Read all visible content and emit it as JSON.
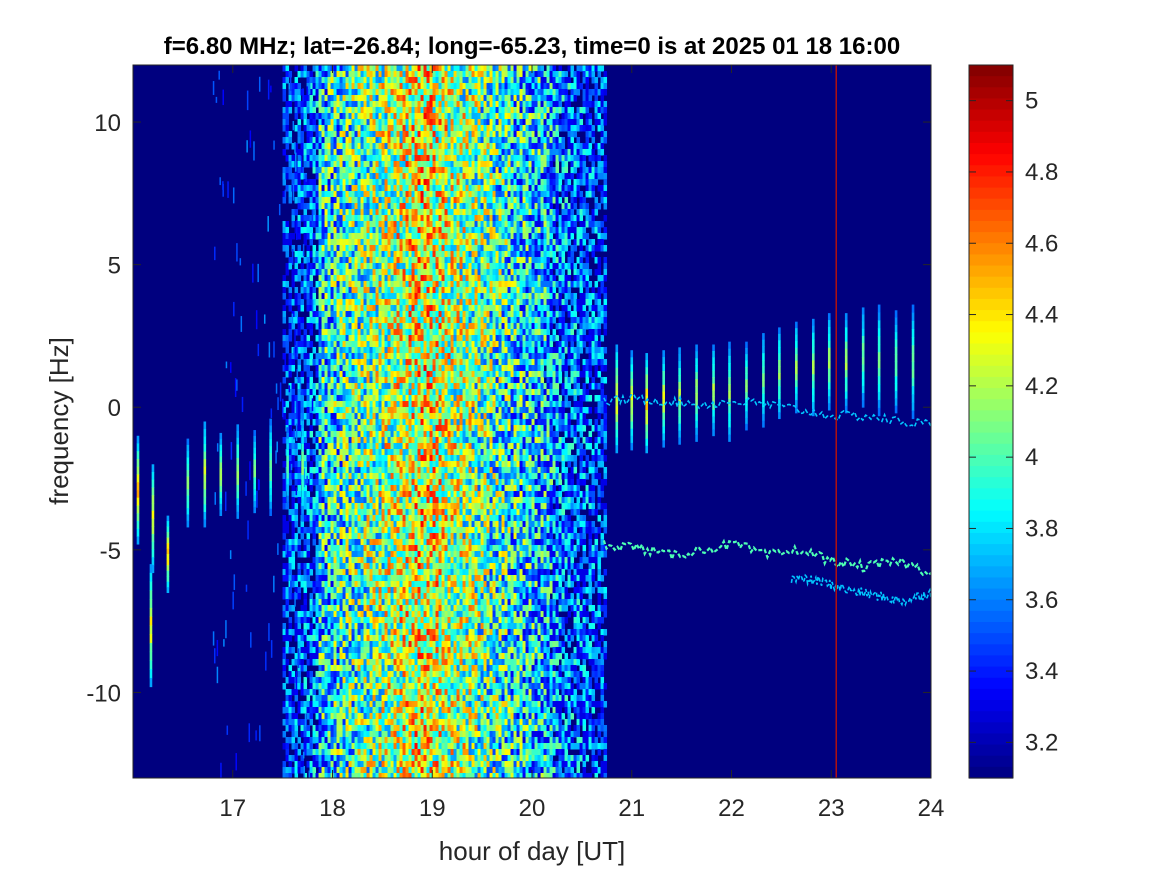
{
  "chart_data": {
    "type": "heatmap",
    "title": "f=6.80 MHz;  lat=-26.84; long=-65.23, time=0 is at 2025 01 18 16:00",
    "xlabel": "hour of day [UT]",
    "ylabel": "frequency [Hz]",
    "xlim": [
      16.0,
      24.0
    ],
    "ylim": [
      -13.0,
      12.0
    ],
    "xticks": [
      17,
      18,
      19,
      20,
      21,
      22,
      23,
      24
    ],
    "yticks": [
      -10,
      -5,
      0,
      5,
      10
    ],
    "colormap": "jet",
    "clim": [
      3.1,
      5.1
    ],
    "colorbar": {
      "ticks": [
        3.2,
        3.4,
        3.6,
        3.8,
        4,
        4.2,
        4.4,
        4.6,
        4.8,
        5
      ],
      "placement": "right"
    },
    "vertical_marker": {
      "x": 23.05,
      "color": "#b01010"
    },
    "regions": [
      {
        "name": "broadband-noise",
        "x_range": [
          17.85,
          20.72
        ],
        "peak_x": 18.9,
        "level_range": [
          3.6,
          4.8
        ]
      },
      {
        "name": "ordinary-trace",
        "x_range": [
          20.72,
          24.0
        ],
        "y_values": [
          0.2,
          0.3,
          0.2,
          0.1,
          0.2,
          0.1,
          -0.1,
          -0.3,
          -0.3,
          -0.5,
          -0.6
        ]
      },
      {
        "name": "lower-trace",
        "x_range": [
          20.72,
          24.0
        ],
        "y_values": [
          -4.8,
          -4.9,
          -5.2,
          -5.0,
          -4.8,
          -5.2,
          -5.0,
          -5.4,
          -5.6,
          -5.4,
          -5.8
        ]
      },
      {
        "name": "lower-trace-split",
        "x_range": [
          22.6,
          24.0
        ],
        "y_values": [
          -6.0,
          -6.1,
          -6.4,
          -6.6,
          -6.8,
          -6.5
        ]
      }
    ],
    "streaks": [
      {
        "x": 16.05,
        "y_range": [
          -4.8,
          -1.0
        ],
        "peak": 4.6
      },
      {
        "x": 16.2,
        "y_range": [
          -5.8,
          -2.0
        ],
        "peak": 4.5
      },
      {
        "x": 16.35,
        "y_range": [
          -6.5,
          -3.8
        ],
        "peak": 4.6
      },
      {
        "x": 16.18,
        "y_range": [
          -9.8,
          -5.5
        ],
        "peak": 4.5
      },
      {
        "x": 16.55,
        "y_range": [
          -4.2,
          -1.1
        ],
        "peak": 4.3
      },
      {
        "x": 16.72,
        "y_range": [
          -4.2,
          -0.5
        ],
        "peak": 4.4
      },
      {
        "x": 16.88,
        "y_range": [
          -3.8,
          -0.9
        ],
        "peak": 4.3
      },
      {
        "x": 17.05,
        "y_range": [
          -3.9,
          -0.6
        ],
        "peak": 4.3
      },
      {
        "x": 17.22,
        "y_range": [
          -3.7,
          -0.8
        ],
        "peak": 4.2
      },
      {
        "x": 17.38,
        "y_range": [
          -3.8,
          -0.4
        ],
        "peak": 4.2
      },
      {
        "x": 17.55,
        "y_range": [
          -3.5,
          -0.7
        ],
        "peak": 4.1
      },
      {
        "x": 17.7,
        "y_range": [
          -4.0,
          -0.2
        ],
        "peak": 4.2
      },
      {
        "x": 20.85,
        "y_range": [
          -1.6,
          2.2
        ],
        "peak": 4.5
      },
      {
        "x": 21.0,
        "y_range": [
          -1.5,
          2.0
        ],
        "peak": 4.4
      },
      {
        "x": 21.15,
        "y_range": [
          -1.6,
          1.9
        ],
        "peak": 4.6
      },
      {
        "x": 21.32,
        "y_range": [
          -1.4,
          2.0
        ],
        "peak": 4.4
      },
      {
        "x": 21.48,
        "y_range": [
          -1.3,
          2.1
        ],
        "peak": 4.3
      },
      {
        "x": 21.65,
        "y_range": [
          -1.2,
          2.2
        ],
        "peak": 4.3
      },
      {
        "x": 21.82,
        "y_range": [
          -1.0,
          2.2
        ],
        "peak": 4.3
      },
      {
        "x": 21.98,
        "y_range": [
          -1.2,
          2.3
        ],
        "peak": 4.3
      },
      {
        "x": 22.15,
        "y_range": [
          -0.8,
          2.3
        ],
        "peak": 4.2
      },
      {
        "x": 22.32,
        "y_range": [
          -0.7,
          2.6
        ],
        "peak": 4.2
      },
      {
        "x": 22.48,
        "y_range": [
          -0.4,
          2.8
        ],
        "peak": 4.3
      },
      {
        "x": 22.65,
        "y_range": [
          -0.2,
          3.0
        ],
        "peak": 4.3
      },
      {
        "x": 22.82,
        "y_range": [
          -0.3,
          3.1
        ],
        "peak": 4.3
      },
      {
        "x": 22.98,
        "y_range": [
          -0.1,
          3.3
        ],
        "peak": 4.3
      },
      {
        "x": 23.15,
        "y_range": [
          -0.2,
          3.3
        ],
        "peak": 4.3
      },
      {
        "x": 23.32,
        "y_range": [
          0.0,
          3.5
        ],
        "peak": 4.2
      },
      {
        "x": 23.48,
        "y_range": [
          -0.3,
          3.6
        ],
        "peak": 4.2
      },
      {
        "x": 23.65,
        "y_range": [
          -0.2,
          3.4
        ],
        "peak": 4.2
      },
      {
        "x": 23.82,
        "y_range": [
          -0.4,
          3.6
        ],
        "peak": 4.2
      }
    ]
  },
  "colors": {
    "background": "#00007f",
    "marker": "#b01010",
    "axis": "#262626"
  }
}
